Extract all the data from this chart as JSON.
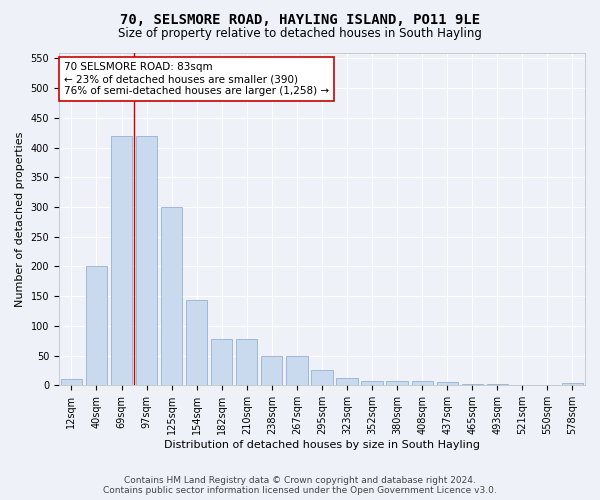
{
  "title": "70, SELSMORE ROAD, HAYLING ISLAND, PO11 9LE",
  "subtitle": "Size of property relative to detached houses in South Hayling",
  "xlabel": "Distribution of detached houses by size in South Hayling",
  "ylabel": "Number of detached properties",
  "categories": [
    "12sqm",
    "40sqm",
    "69sqm",
    "97sqm",
    "125sqm",
    "154sqm",
    "182sqm",
    "210sqm",
    "238sqm",
    "267sqm",
    "295sqm",
    "323sqm",
    "352sqm",
    "380sqm",
    "408sqm",
    "437sqm",
    "465sqm",
    "493sqm",
    "521sqm",
    "550sqm",
    "578sqm"
  ],
  "values": [
    10,
    200,
    420,
    420,
    300,
    143,
    78,
    78,
    49,
    49,
    25,
    12,
    8,
    8,
    8,
    5,
    3,
    2,
    1,
    1,
    4
  ],
  "bar_color": "#c9d9ee",
  "bar_edge_color": "#a0b8d8",
  "vline_x": 2.5,
  "vline_color": "#cc0000",
  "annotation_text": "70 SELSMORE ROAD: 83sqm\n← 23% of detached houses are smaller (390)\n76% of semi-detached houses are larger (1,258) →",
  "annotation_box_color": "#ffffff",
  "annotation_box_edge": "#cc0000",
  "ylim": [
    0,
    560
  ],
  "yticks": [
    0,
    50,
    100,
    150,
    200,
    250,
    300,
    350,
    400,
    450,
    500,
    550
  ],
  "footer1": "Contains HM Land Registry data © Crown copyright and database right 2024.",
  "footer2": "Contains public sector information licensed under the Open Government Licence v3.0.",
  "bg_color": "#eef2f8",
  "grid_color": "#ffffff",
  "title_fontsize": 10,
  "subtitle_fontsize": 8.5,
  "xlabel_fontsize": 8,
  "ylabel_fontsize": 8,
  "tick_fontsize": 7,
  "annotation_fontsize": 7.5,
  "footer_fontsize": 6.5
}
